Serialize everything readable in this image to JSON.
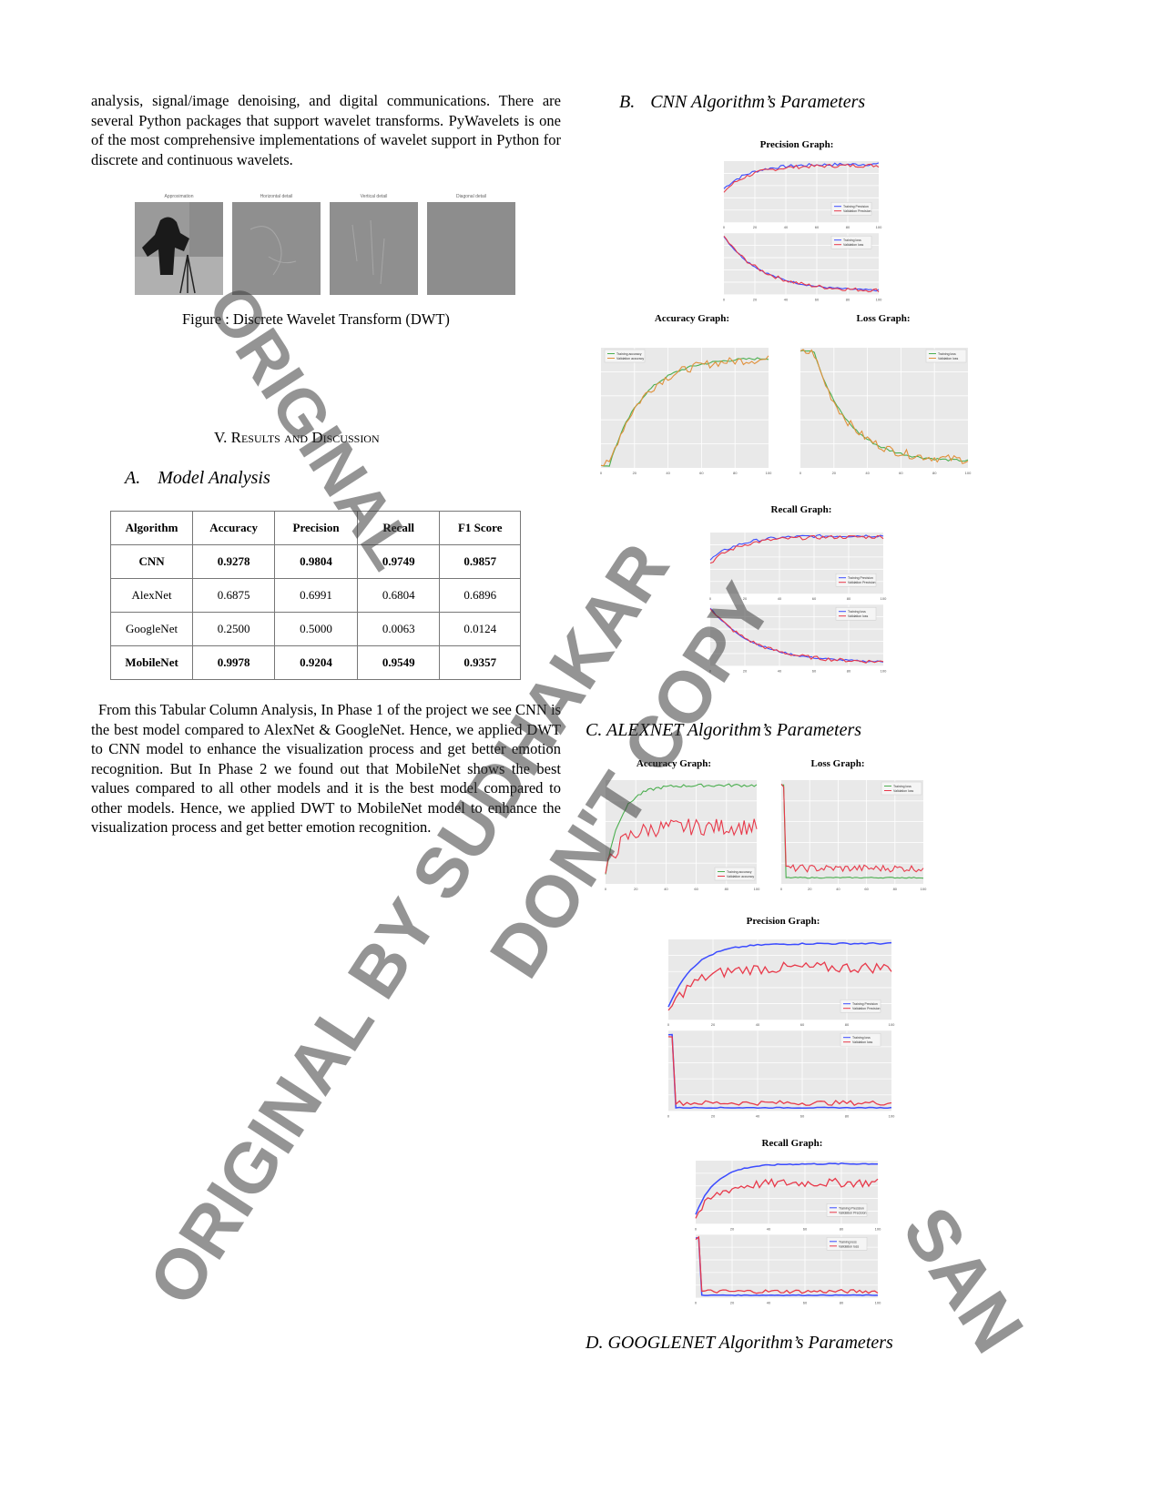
{
  "intro": {
    "text": "analysis, signal/image denoising, and digital communications. There are several Python packages that support wavelet transforms. PyWavelets is one of the most comprehensive implementations of wavelet support in Python for discrete and continuous wavelets."
  },
  "dwt_figure": {
    "panel_titles": [
      "Approximation",
      "Horizontal detail",
      "Vertical detail",
      "Diagonal detail"
    ],
    "caption": "Figure : Discrete Wavelet Transform (DWT)"
  },
  "section": {
    "title_prefix": "V. R",
    "title_sc1": "esults and ",
    "title_d": "D",
    "title_sc2": "iscussion",
    "subsection_a_num": "A.",
    "subsection_a_title": "Model Analysis"
  },
  "table": {
    "headers": [
      "Algorithm",
      "Accuracy",
      "Precision",
      "Recall",
      "F1 Score"
    ],
    "rows": [
      [
        "CNN",
        "0.9278",
        "0.9804",
        "0.9749",
        "0.9857"
      ],
      [
        "AlexNet",
        "0.6875",
        "0.6991",
        "0.6804",
        "0.6896"
      ],
      [
        "GoogleNet",
        "0.2500",
        "0.5000",
        "0.0063",
        "0.0124"
      ],
      [
        "MobileNet",
        "0.9978",
        "0.9204",
        "0.9549",
        "0.9357"
      ]
    ]
  },
  "analysis": {
    "text": "From this Tabular Column Analysis, In Phase 1 of the project we see CNN is the best model compared to AlexNet & GoogleNet. Hence, we applied DWT to CNN model to enhance the visualization process and get better emotion recognition. But In Phase 2 we found out that MobileNet shows the best values compared to all other models and it is the best model compared to other models. Hence, we applied DWT to MobileNet model to enhance the visualization process and get better emotion recognition."
  },
  "cnn": {
    "heading_num": "B.",
    "heading_title": "CNN Algorithm’s Parameters",
    "precision_title": "Precision Graph:",
    "accuracy_title": "Accuracy Graph:",
    "loss_title": "Loss Graph:",
    "recall_title": "Recall Graph:"
  },
  "alexnet": {
    "heading": "C. ALEXNET Algorithm’s Parameters",
    "accuracy_title": "Accuracy Graph:",
    "loss_title": "Loss Graph:",
    "precision_title": "Precision Graph:",
    "recall_title": "Recall Graph:"
  },
  "googlenet": {
    "heading": "D. GOOGLENET Algorithm’s Parameters"
  },
  "watermark": {
    "w1": "ORIGINAL BY SUDHAKAR",
    "w2": "ORIGINAL",
    "w3": "DON'T COPY",
    "w4": "SAN"
  },
  "colors": {
    "training": "#3b4bff",
    "validation": "#e8394a",
    "train_green": "#4caf50",
    "val_orange": "#e0903a"
  },
  "chart_data": [
    {
      "type": "line",
      "title": "Precision Graph:",
      "series": [
        {
          "name": "Training Precision"
        },
        {
          "name": "Validation Precision"
        }
      ],
      "x": [
        0,
        20,
        40,
        60,
        80,
        100
      ]
    },
    {
      "type": "line",
      "title": "Accuracy Graph:",
      "series": [
        {
          "name": "Training accuracy"
        },
        {
          "name": "Validation accuracy"
        }
      ],
      "x": [
        0,
        20,
        40,
        60,
        80,
        100
      ]
    },
    {
      "type": "line",
      "title": "Loss Graph:",
      "series": [
        {
          "name": "Training loss"
        },
        {
          "name": "Validation loss"
        }
      ],
      "x": [
        0,
        20,
        40,
        60,
        80,
        100
      ]
    },
    {
      "type": "line",
      "title": "Recall Graph:",
      "series": [
        {
          "name": "Training Recall"
        },
        {
          "name": "Validation Recall"
        }
      ],
      "x": [
        0,
        20,
        40,
        60,
        80,
        100
      ]
    }
  ]
}
